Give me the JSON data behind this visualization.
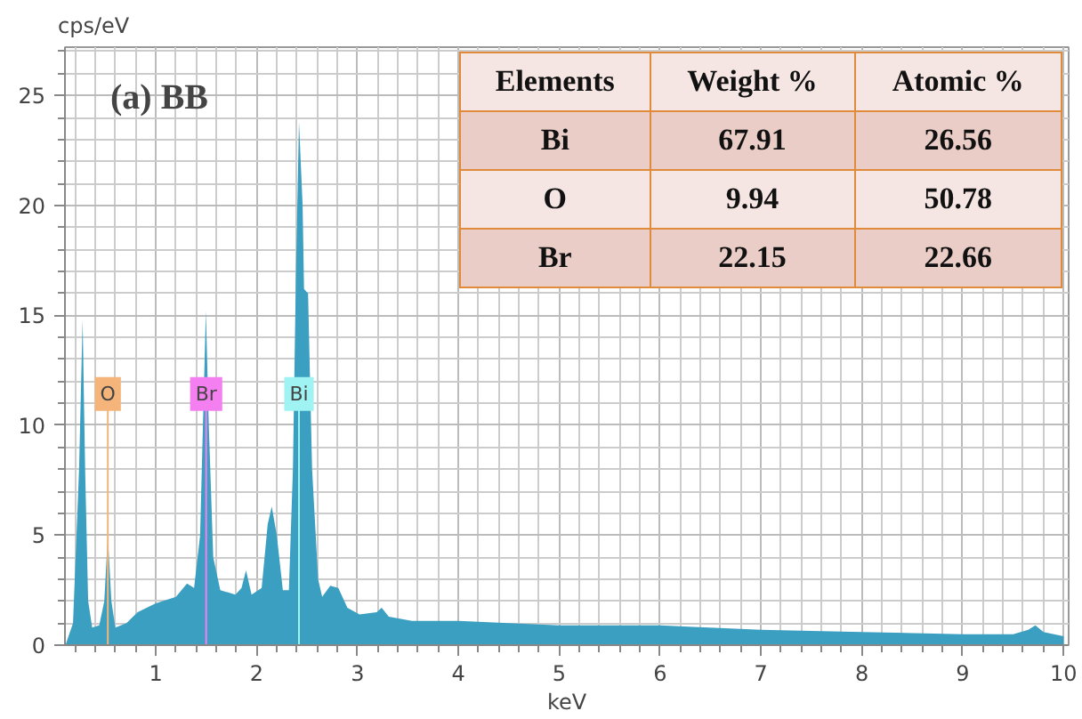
{
  "chart_data": {
    "type": "area",
    "title": "(a) BB",
    "xlabel": "keV",
    "ylabel": "cps/eV",
    "xlim": [
      0.1,
      10.05
    ],
    "ylim": [
      0,
      27.2
    ],
    "xticks": [
      1,
      2,
      3,
      4,
      5,
      6,
      7,
      8,
      9,
      10
    ],
    "yticks": [
      0,
      5,
      10,
      15,
      20,
      25
    ],
    "grid": true,
    "x": [
      0.105,
      0.18,
      0.24,
      0.275,
      0.3,
      0.33,
      0.37,
      0.44,
      0.49,
      0.525,
      0.56,
      0.6,
      0.71,
      0.82,
      1.0,
      1.2,
      1.31,
      1.38,
      1.44,
      1.497,
      1.526,
      1.57,
      1.64,
      1.79,
      1.85,
      1.895,
      1.95,
      2.05,
      2.11,
      2.15,
      2.2,
      2.26,
      2.32,
      2.36,
      2.39,
      2.42,
      2.456,
      2.47,
      2.51,
      2.55,
      2.61,
      2.65,
      2.73,
      2.81,
      2.9,
      3.02,
      3.19,
      3.24,
      3.31,
      3.54,
      4.0,
      5.0,
      6.0,
      7.0,
      8.0,
      9.0,
      9.5,
      9.65,
      9.72,
      9.8,
      10.0
    ],
    "series": [
      {
        "color": "#3a9fc0",
        "values": [
          0,
          1,
          8,
          14.8,
          8,
          2,
          0.8,
          0.9,
          2,
          5,
          2,
          0.8,
          1.0,
          1.5,
          1.9,
          2.2,
          2.8,
          2.6,
          5,
          15.2,
          10,
          4,
          2.5,
          2.3,
          2.6,
          3.4,
          2.3,
          2.6,
          5.5,
          6.3,
          5,
          2.5,
          2.5,
          8,
          17,
          23.8,
          20,
          16.2,
          16,
          8,
          3,
          2.2,
          2.7,
          2.6,
          1.7,
          1.4,
          1.5,
          1.7,
          1.3,
          1.1,
          1.1,
          0.9,
          0.9,
          0.7,
          0.6,
          0.5,
          0.5,
          0.7,
          0.9,
          0.6,
          0.4
        ]
      }
    ],
    "ref_lines": [
      {
        "axis": "x",
        "value": 0.525,
        "label": "O",
        "color": "#f5b57a"
      },
      {
        "axis": "x",
        "value": 1.5,
        "label": "Br",
        "color": "#f47ff0"
      },
      {
        "axis": "x",
        "value": 2.42,
        "label": "Bi",
        "color": "#9ff3f3"
      }
    ],
    "annotations": [
      "Elements",
      "Weight %",
      "Atomic %",
      "Bi",
      "67.91",
      "26.56",
      "O",
      "9.94",
      "50.78",
      "Br",
      "22.15",
      "22.66"
    ]
  }
}
